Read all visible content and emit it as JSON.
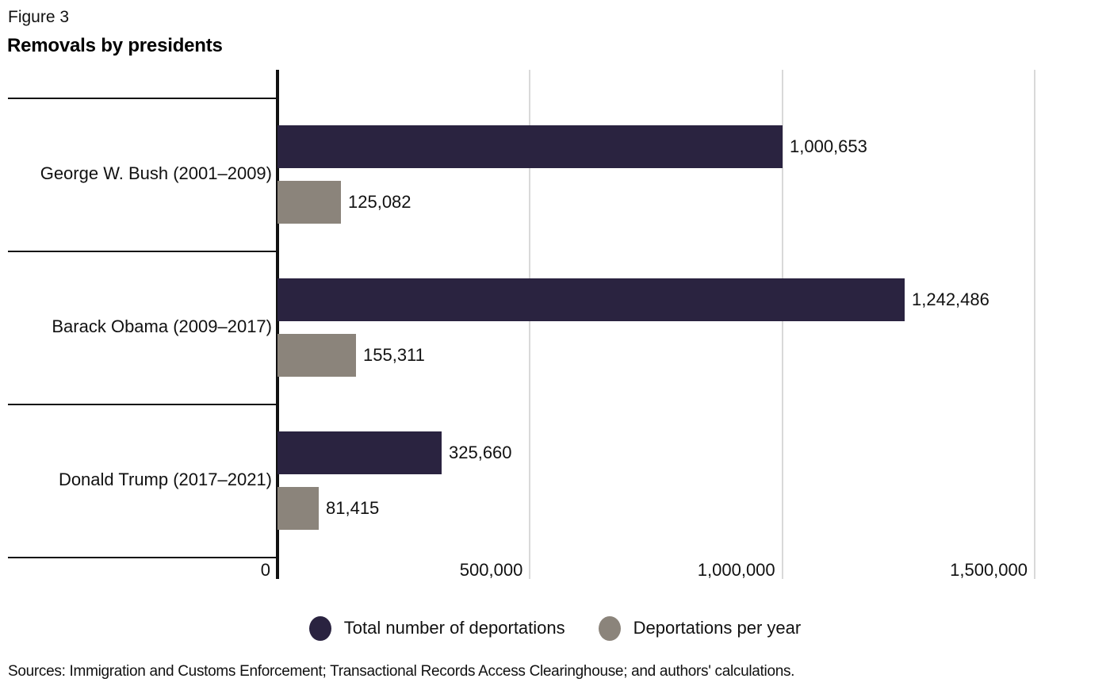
{
  "figure": {
    "label": "Figure 3",
    "title": "Removals by presidents",
    "source": "Sources: Immigration and Customs Enforcement; Transactional Records Access Clearinghouse; and authors' calculations."
  },
  "colors": {
    "total": "#2a2340",
    "per_year": "#8b847b",
    "grid": "#d9d9d9",
    "axis": "#111111",
    "text": "#111111"
  },
  "chart_data": {
    "type": "bar",
    "orientation": "horizontal",
    "title": "Removals by presidents",
    "xlabel": "",
    "ylabel": "",
    "grid": "vertical-gridlines",
    "legend_position": "bottom-center",
    "categories": [
      "George W. Bush (2001–2009)",
      "Barack Obama (2009–2017)",
      "Donald Trump (2017–2021)"
    ],
    "series": [
      {
        "name": "Total number of deportations",
        "color_key": "total",
        "values": [
          1000653,
          1242486,
          325660
        ],
        "labels": [
          "1,000,653",
          "1,242,486",
          "325,660"
        ]
      },
      {
        "name": "Deportations per year",
        "color_key": "per_year",
        "values": [
          125082,
          155311,
          81415
        ],
        "labels": [
          "125,082",
          "155,311",
          "81,415"
        ]
      }
    ],
    "x_axis": {
      "min": 0,
      "max": 1650000,
      "ticks": [
        0,
        500000,
        1000000,
        1500000
      ],
      "tick_labels": [
        "0",
        "500,000",
        "1,000,000",
        "1,500,000"
      ]
    }
  }
}
